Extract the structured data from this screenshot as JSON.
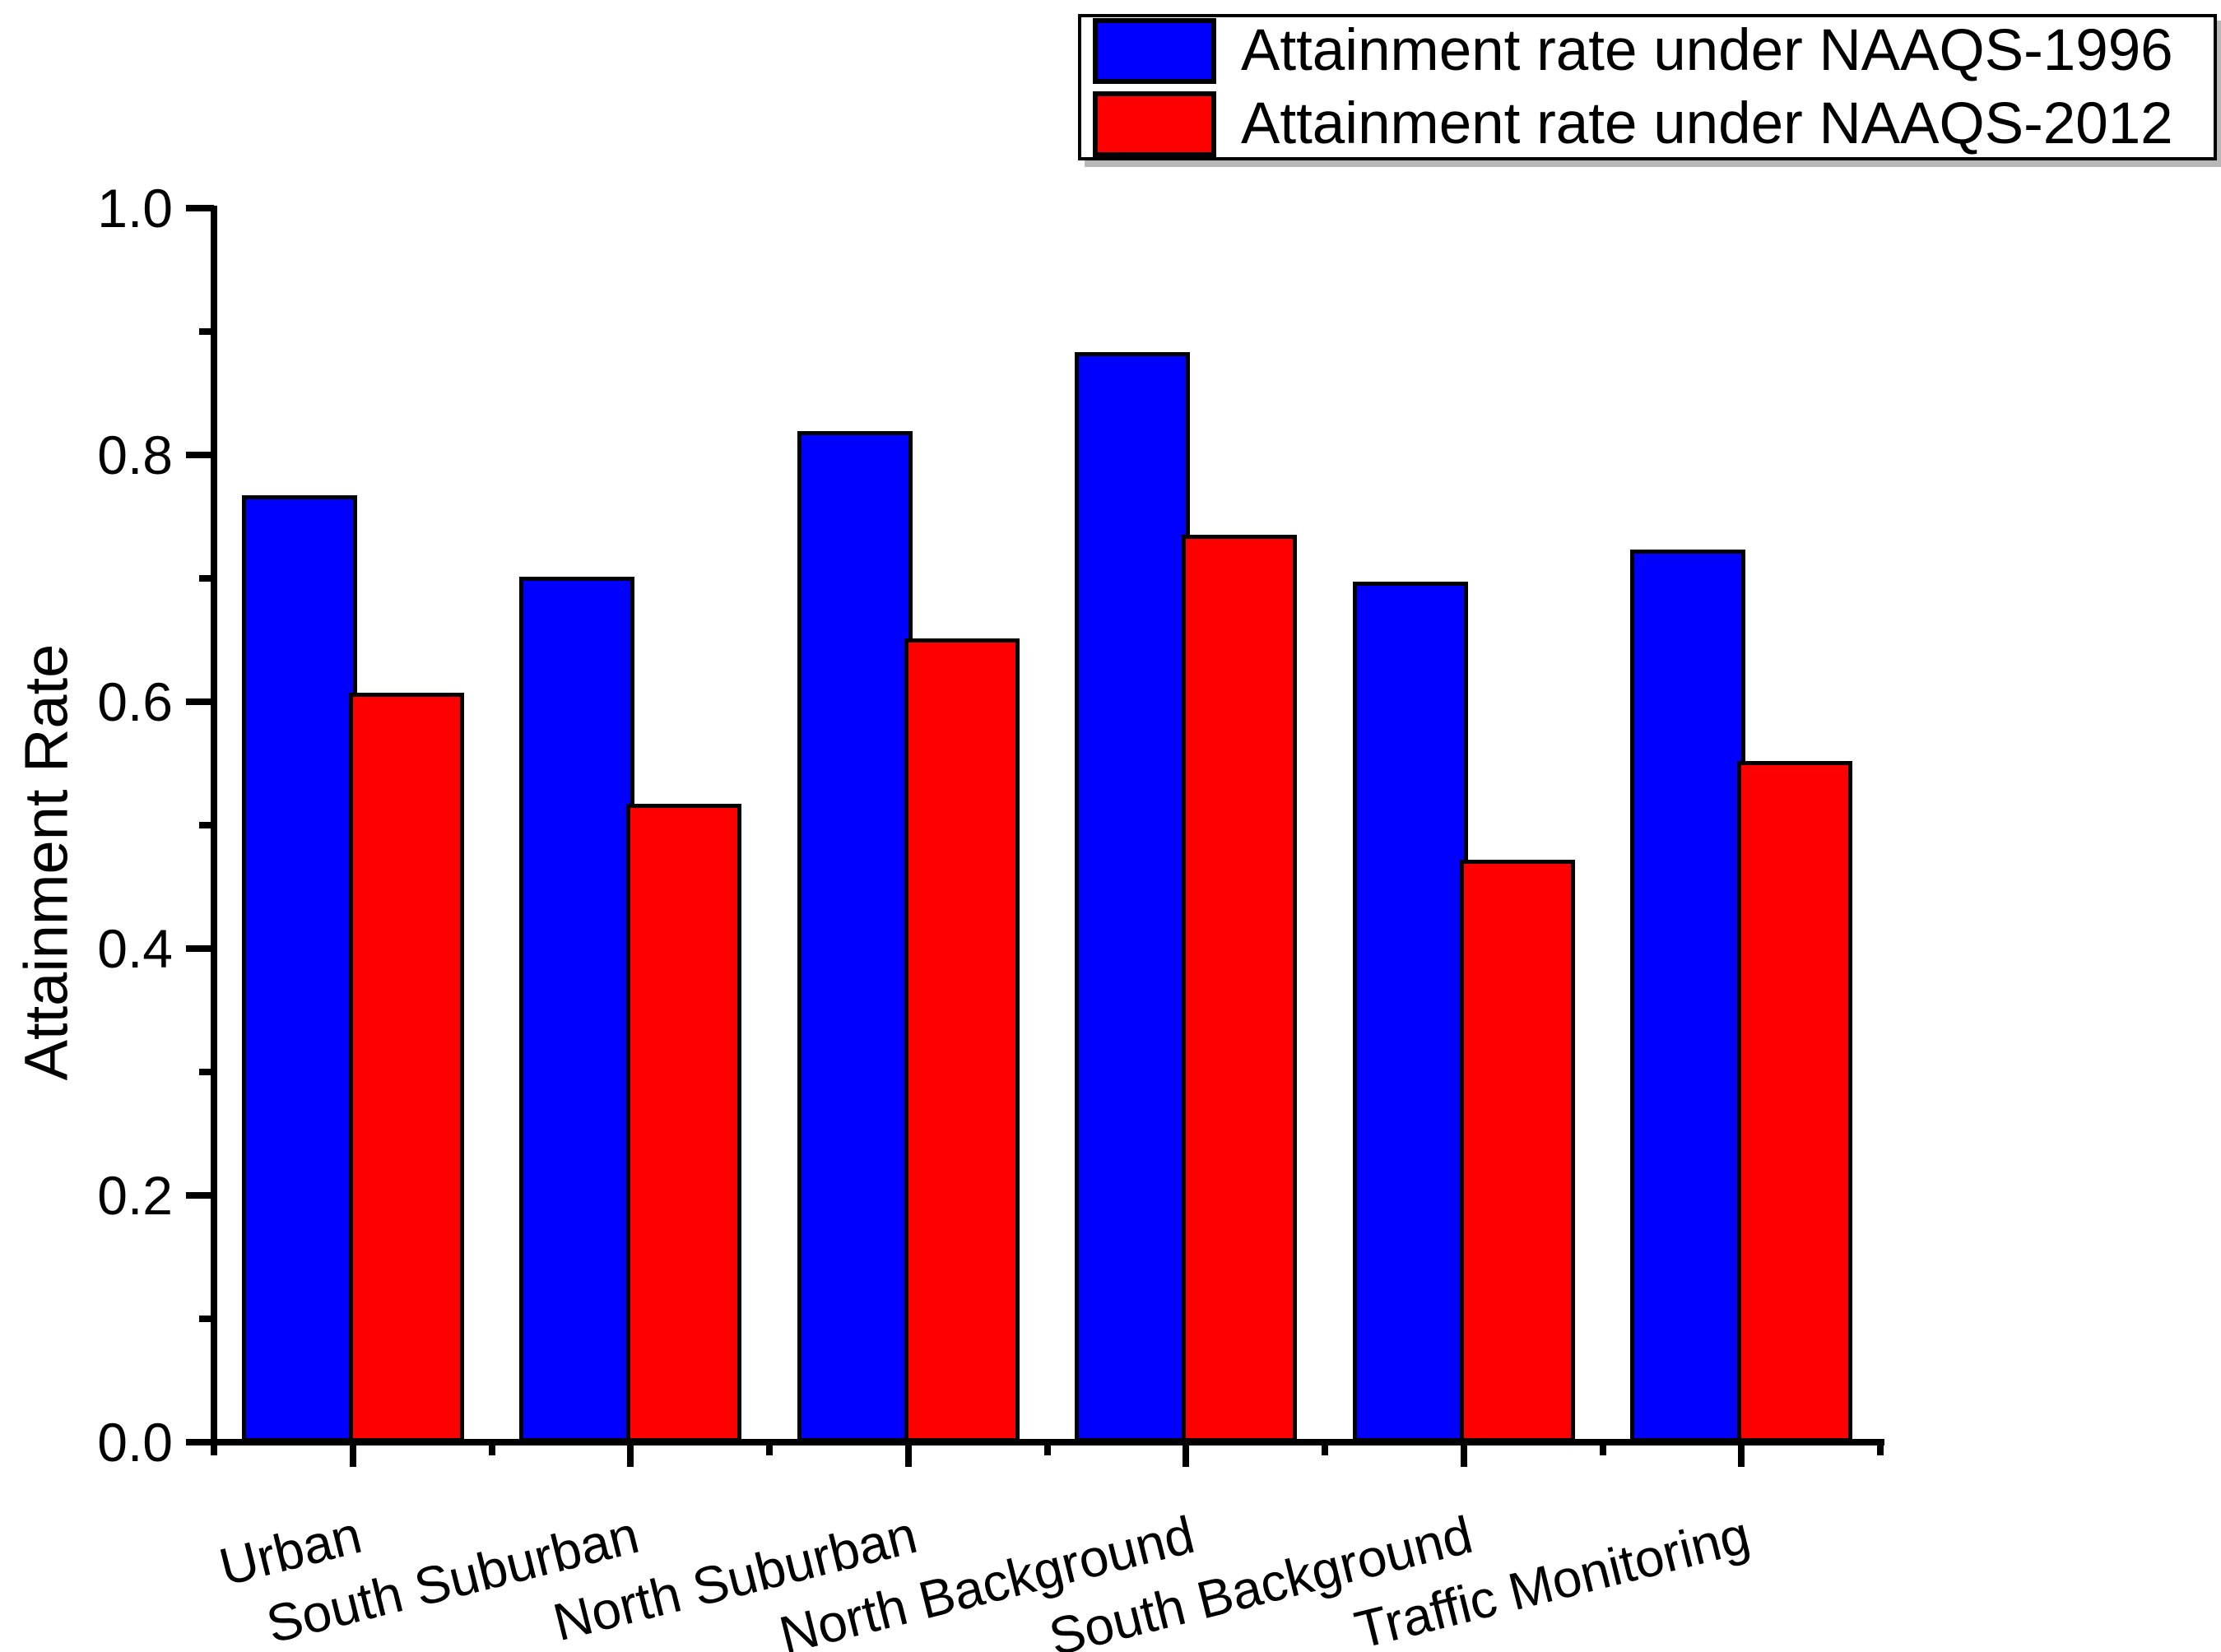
{
  "chart_data": {
    "type": "bar",
    "title": "",
    "xlabel": "",
    "ylabel": "Attainment Rate",
    "categories": [
      "Urban",
      "South Suburban",
      "North Suburban",
      "North Background",
      "South Background",
      "Traffic Monitoring"
    ],
    "series": [
      {
        "name": "Attainment rate under NAAQS-1996",
        "color": "#0000fe",
        "values": [
          0.767,
          0.701,
          0.819,
          0.883,
          0.697,
          0.723
        ]
      },
      {
        "name": "Attainment rate under NAAQS-2012",
        "color": "#fe0000",
        "values": [
          0.607,
          0.517,
          0.651,
          0.735,
          0.472,
          0.552
        ]
      }
    ],
    "ylim": [
      0.0,
      1.0
    ],
    "yticks_major": [
      0.0,
      0.2,
      0.4,
      0.6,
      0.8,
      1.0
    ],
    "ytick_labels": [
      "0.0",
      "0.2",
      "0.4",
      "0.6",
      "0.8",
      "1.0"
    ],
    "yticks_minor": [
      0.1,
      0.3,
      0.5,
      0.7,
      0.9
    ],
    "grid": false,
    "legend_position": "top-right",
    "bar_edge_color": "#000000",
    "axis_color": "#000000"
  }
}
